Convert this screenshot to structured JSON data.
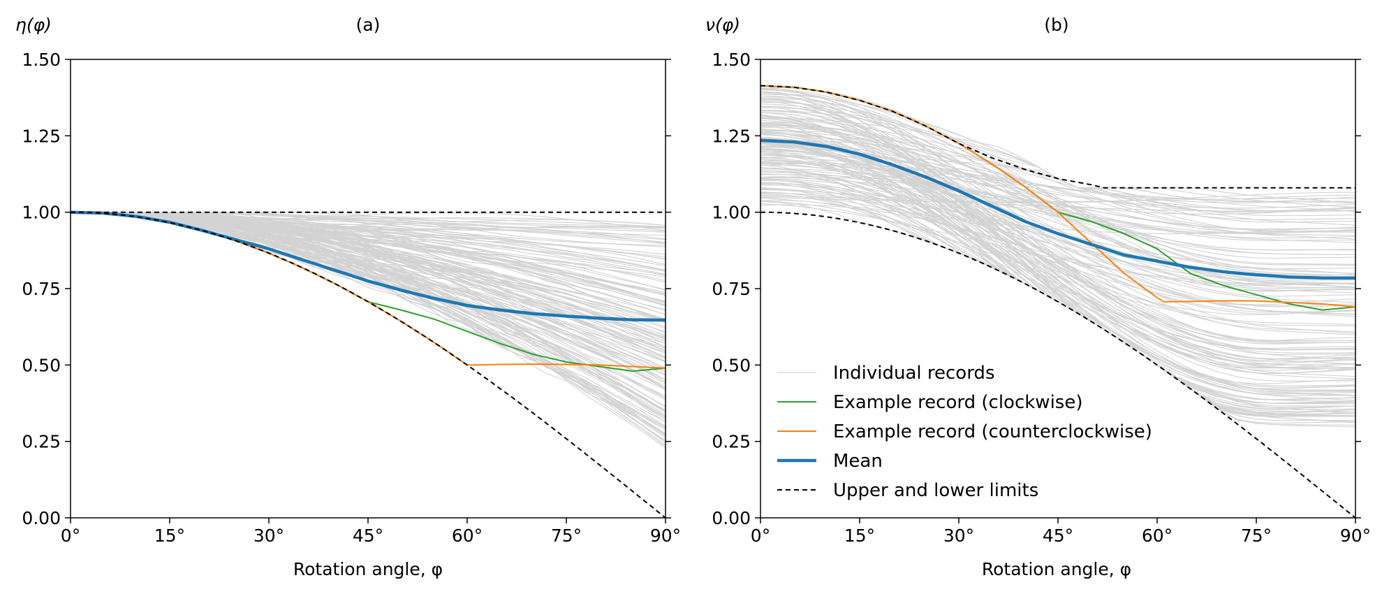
{
  "chart_data": [
    {
      "type": "line",
      "title": "(a)",
      "ylabel": "η(φ)",
      "xlabel": "Rotation angle, φ",
      "xlim": [
        0,
        90
      ],
      "ylim": [
        0,
        1.5
      ],
      "xticks": [
        "0°",
        "15°",
        "30°",
        "45°",
        "60°",
        "75°",
        "90°"
      ],
      "yticks": [
        "0.00",
        "0.25",
        "0.50",
        "0.75",
        "1.00",
        "1.25",
        "1.50"
      ],
      "grid": false,
      "series": [
        {
          "name": "Individual records",
          "color": "#d3d3d3",
          "style": "thin",
          "note_values": "approx. 150 faint grey curves between lower limit and 1.0"
        },
        {
          "name": "Example record (clockwise)",
          "color": "#2ca02c",
          "x": [
            0,
            5,
            10,
            15,
            20,
            25,
            30,
            35,
            40,
            45,
            50,
            55,
            60,
            65,
            70,
            75,
            80,
            85,
            90
          ],
          "y": [
            1.0,
            0.996,
            0.985,
            0.966,
            0.94,
            0.906,
            0.866,
            0.819,
            0.766,
            0.707,
            0.68,
            0.65,
            0.61,
            0.57,
            0.535,
            0.51,
            0.495,
            0.48,
            0.49
          ]
        },
        {
          "name": "Example record (counterclockwise)",
          "color": "#ff7f0e",
          "x": [
            0,
            5,
            10,
            15,
            20,
            25,
            30,
            35,
            40,
            45,
            50,
            55,
            60,
            61,
            65,
            70,
            75,
            80,
            85,
            90
          ],
          "y": [
            1.0,
            0.996,
            0.985,
            0.966,
            0.94,
            0.906,
            0.866,
            0.819,
            0.766,
            0.707,
            0.643,
            0.574,
            0.5,
            0.5,
            0.502,
            0.503,
            0.502,
            0.5,
            0.495,
            0.49
          ]
        },
        {
          "name": "Mean",
          "color": "#1f77b4",
          "style": "thick",
          "x": [
            0,
            5,
            10,
            15,
            20,
            25,
            30,
            35,
            40,
            45,
            50,
            55,
            60,
            65,
            70,
            75,
            80,
            85,
            90
          ],
          "y": [
            1.0,
            0.997,
            0.986,
            0.967,
            0.94,
            0.91,
            0.88,
            0.845,
            0.81,
            0.775,
            0.745,
            0.718,
            0.695,
            0.68,
            0.668,
            0.66,
            0.653,
            0.648,
            0.647
          ]
        },
        {
          "name": "Upper limit",
          "color": "#000000",
          "style": "dashed",
          "x": [
            0,
            90
          ],
          "y": [
            1.0,
            1.0
          ]
        },
        {
          "name": "Lower limit",
          "color": "#000000",
          "style": "dashed",
          "function": "cos(phi)"
        }
      ]
    },
    {
      "type": "line",
      "title": "(b)",
      "ylabel": "ν(φ)",
      "xlabel": "Rotation angle, φ",
      "xlim": [
        0,
        90
      ],
      "ylim": [
        0,
        1.5
      ],
      "xticks": [
        "0°",
        "15°",
        "30°",
        "45°",
        "60°",
        "75°",
        "90°"
      ],
      "yticks": [
        "0.00",
        "0.25",
        "0.50",
        "0.75",
        "1.00",
        "1.25",
        "1.50"
      ],
      "grid": false,
      "legend_position": "lower-left",
      "legend": [
        {
          "label": "Individual records",
          "color": "#d3d3d3",
          "style": "thin"
        },
        {
          "label": "Example record (clockwise)",
          "color": "#2ca02c",
          "style": "solid"
        },
        {
          "label": "Example record (counterclockwise)",
          "color": "#ff7f0e",
          "style": "solid"
        },
        {
          "label": "Mean",
          "color": "#1f77b4",
          "style": "thick"
        },
        {
          "label": "Upper and lower limits",
          "color": "#000000",
          "style": "dashed"
        }
      ],
      "series": [
        {
          "name": "Individual records",
          "color": "#d3d3d3",
          "style": "thin",
          "note_values": "approx. 150 faint grey curves between lower and upper limits"
        },
        {
          "name": "Example record (clockwise)",
          "color": "#2ca02c",
          "x": [
            0,
            5,
            10,
            15,
            20,
            25,
            30,
            35,
            40,
            45,
            50,
            55,
            60,
            65,
            70,
            75,
            80,
            85,
            90
          ],
          "y": [
            1.414,
            1.409,
            1.393,
            1.366,
            1.33,
            1.282,
            1.225,
            1.158,
            1.083,
            1.0,
            0.97,
            0.93,
            0.88,
            0.8,
            0.76,
            0.73,
            0.7,
            0.68,
            0.69
          ]
        },
        {
          "name": "Example record (counterclockwise)",
          "color": "#ff7f0e",
          "x": [
            0,
            5,
            10,
            15,
            20,
            25,
            30,
            35,
            40,
            45,
            50,
            55,
            60,
            61,
            65,
            70,
            75,
            80,
            85,
            90
          ],
          "y": [
            1.414,
            1.409,
            1.393,
            1.366,
            1.33,
            1.282,
            1.225,
            1.158,
            1.083,
            1.0,
            0.9,
            0.8,
            0.72,
            0.707,
            0.708,
            0.71,
            0.71,
            0.705,
            0.7,
            0.69
          ]
        },
        {
          "name": "Mean",
          "color": "#1f77b4",
          "style": "thick",
          "x": [
            0,
            5,
            10,
            15,
            20,
            25,
            30,
            35,
            40,
            45,
            50,
            55,
            60,
            65,
            70,
            75,
            80,
            85,
            90
          ],
          "y": [
            1.235,
            1.23,
            1.215,
            1.19,
            1.155,
            1.115,
            1.07,
            1.02,
            0.97,
            0.93,
            0.895,
            0.86,
            0.84,
            0.82,
            0.805,
            0.795,
            0.788,
            0.785,
            0.785
          ]
        },
        {
          "name": "Upper limit",
          "color": "#000000",
          "style": "dashed",
          "x": [
            0,
            5,
            10,
            15,
            20,
            25,
            30,
            35,
            40,
            45,
            50,
            52,
            60,
            70,
            80,
            90
          ],
          "y": [
            1.414,
            1.409,
            1.393,
            1.366,
            1.33,
            1.282,
            1.225,
            1.178,
            1.14,
            1.11,
            1.09,
            1.08,
            1.08,
            1.08,
            1.08,
            1.08
          ]
        },
        {
          "name": "Lower limit",
          "color": "#000000",
          "style": "dashed",
          "function": "cos(phi)"
        }
      ]
    }
  ]
}
